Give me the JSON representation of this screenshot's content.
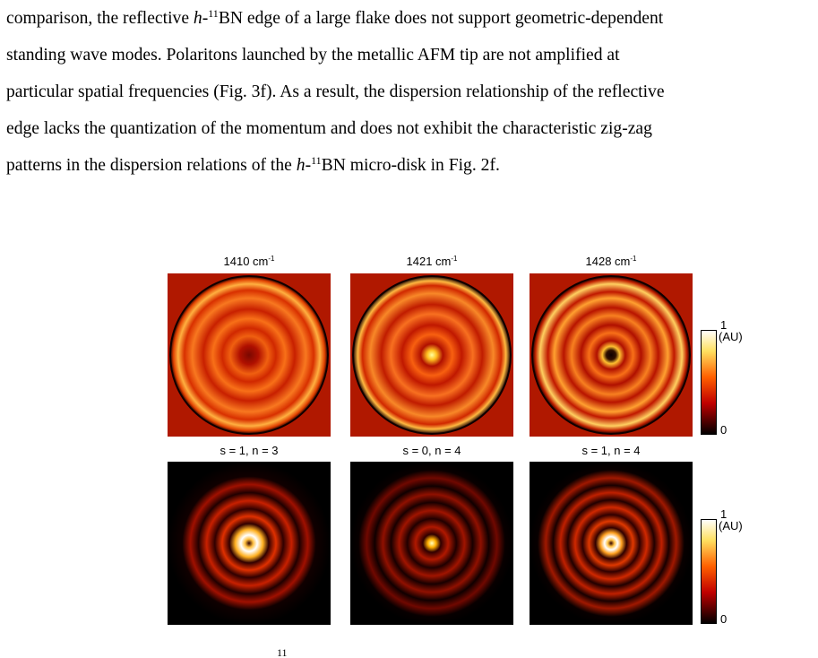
{
  "paragraph": {
    "line1": {
      "a": "comparison, the reflective ",
      "b": "h",
      "c": "-",
      "d": "11",
      "e": "BN edge of a large flake does not support geometric-dependent"
    },
    "line2": "standing wave modes. Polaritons launched by the metallic AFM tip are not amplified at",
    "line3": "particular spatial frequencies (Fig. 3f). As a result, the dispersion relationship of the reflective",
    "line4": "edge lacks the quantization of the momentum and does not exhibit the characteristic zig-zag",
    "line5": {
      "a": "patterns in the dispersion relations of the ",
      "b": "h",
      "c": "-",
      "d": "11",
      "e": "BN micro-disk in Fig. 2f."
    }
  },
  "figure": {
    "top_row": [
      {
        "value": "1410 cm",
        "sup": "-1",
        "ring_count": 3,
        "center": "dark"
      },
      {
        "value": "1421 cm",
        "sup": "-1",
        "ring_count": 3,
        "center": "bright"
      },
      {
        "value": "1428 cm",
        "sup": "-1",
        "ring_count": 4,
        "center": "dark"
      }
    ],
    "bottom_row": [
      {
        "label": "s = 1, n = 3",
        "ring_count": 3,
        "center": "ring"
      },
      {
        "label": "s = 0, n = 4",
        "ring_count": 4,
        "center": "spot"
      },
      {
        "label": "s = 1, n = 4",
        "ring_count": 4,
        "center": "ring"
      }
    ],
    "colorbar": {
      "max": "1",
      "unit": "(AU)",
      "min": "0"
    },
    "colors": {
      "dark": "#1a0000",
      "mid": "#c81400",
      "bright": "#ffb400",
      "white": "#ffffff"
    }
  },
  "caption_fragment": {
    "sup": "11"
  }
}
